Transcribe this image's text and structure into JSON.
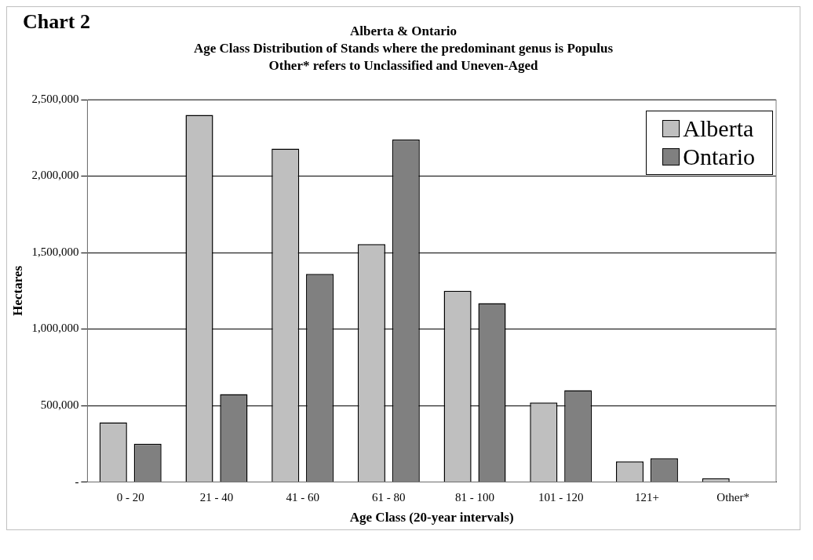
{
  "chart_data": {
    "type": "bar",
    "title": "Alberta & Ontario",
    "subtitle": "Age Class Distribution of Stands where the predominant genus is Populus",
    "annotations": [
      "Chart 2",
      "Other* refers to Unclassified and Uneven-Aged"
    ],
    "xlabel": "Age Class (20-year intervals)",
    "ylabel": "Hectares",
    "categories": [
      "0 - 20",
      "21 - 40",
      "41 - 60",
      "61 - 80",
      "81 - 100",
      "101 - 120",
      "121+",
      "Other*"
    ],
    "series": [
      {
        "name": "Alberta",
        "color": "#bfbfbf",
        "values": [
          390000,
          2400000,
          2180000,
          1555000,
          1250000,
          520000,
          135000,
          25000
        ]
      },
      {
        "name": "Ontario",
        "color": "#808080",
        "values": [
          250000,
          575000,
          1360000,
          2240000,
          1170000,
          600000,
          155000,
          0
        ]
      }
    ],
    "ylim": [
      0,
      2500000
    ],
    "yticks": [
      {
        "value": 0,
        "label": "-"
      },
      {
        "value": 500000,
        "label": "500,000"
      },
      {
        "value": 1000000,
        "label": "1,000,000"
      },
      {
        "value": 1500000,
        "label": "1,500,000"
      },
      {
        "value": 2000000,
        "label": "2,000,000"
      },
      {
        "value": 2500000,
        "label": "2,500,000"
      }
    ],
    "grid": "y",
    "legend": "top right"
  }
}
